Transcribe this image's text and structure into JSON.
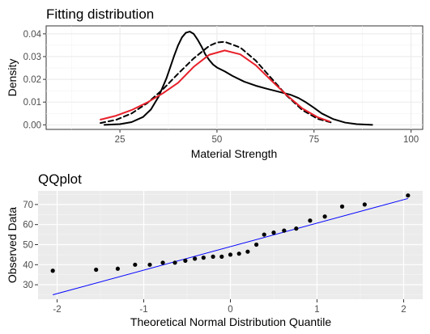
{
  "chart_data": [
    {
      "type": "line",
      "title": "Fitting distribution",
      "xlabel": "Material Strength",
      "ylabel": "Density",
      "xlim": [
        6,
        103
      ],
      "ylim": [
        -0.002,
        0.0435
      ],
      "x_ticks": [
        25,
        50,
        75,
        100
      ],
      "y_ticks": [
        0.0,
        0.01,
        0.02,
        0.03,
        0.04
      ],
      "y_tick_labels": [
        "0.00",
        "0.01",
        "0.02",
        "0.03",
        "0.04"
      ],
      "grid": true,
      "panel_background": "#ffffff",
      "series": [
        {
          "style": "solid",
          "color": "#000000",
          "x": [
            21,
            25,
            28,
            31,
            33,
            35,
            37,
            38,
            39,
            40,
            41,
            42,
            43,
            44,
            45,
            46,
            47,
            48,
            49,
            50,
            52,
            54,
            57,
            60,
            63,
            66,
            69,
            71,
            73,
            75,
            77,
            80,
            83,
            86,
            90
          ],
          "y": [
            0.0,
            0.0003,
            0.0012,
            0.0035,
            0.0068,
            0.0125,
            0.0205,
            0.0255,
            0.0305,
            0.035,
            0.0385,
            0.0405,
            0.041,
            0.04,
            0.0375,
            0.0345,
            0.031,
            0.0285,
            0.0265,
            0.0252,
            0.0235,
            0.0215,
            0.019,
            0.0172,
            0.0158,
            0.0145,
            0.0132,
            0.0118,
            0.0098,
            0.0075,
            0.005,
            0.0025,
            0.001,
            0.0003,
            0.0
          ]
        },
        {
          "style": "dashed",
          "color": "#000000",
          "x": [
            20,
            24,
            28,
            32,
            36,
            40,
            44,
            48,
            50,
            52,
            56,
            60,
            64,
            68,
            72,
            76,
            80
          ],
          "y": [
            0.0008,
            0.0022,
            0.005,
            0.0095,
            0.0155,
            0.0225,
            0.0292,
            0.0347,
            0.0362,
            0.0365,
            0.034,
            0.0282,
            0.0205,
            0.0128,
            0.0065,
            0.0026,
            0.0008
          ]
        },
        {
          "style": "solid",
          "color": "#e8202a",
          "x": [
            20,
            24,
            28,
            32,
            36,
            40,
            44,
            48,
            52,
            56,
            60,
            64,
            68,
            72,
            76,
            79
          ],
          "y": [
            0.0023,
            0.004,
            0.0065,
            0.0098,
            0.0138,
            0.0185,
            0.0255,
            0.0308,
            0.0327,
            0.031,
            0.0262,
            0.0195,
            0.013,
            0.0072,
            0.0033,
            0.0015
          ]
        }
      ]
    },
    {
      "type": "scatter",
      "title": "QQplot",
      "xlabel": "Theoretical Normal Distribution Quantile",
      "ylabel": "Observed Data",
      "xlim": [
        -2.22,
        2.22
      ],
      "ylim": [
        22.8,
        76.8
      ],
      "x_ticks": [
        -2,
        -1,
        0,
        1,
        2
      ],
      "y_ticks": [
        30,
        40,
        50,
        60,
        70
      ],
      "grid": true,
      "panel_background": "#ebebeb",
      "points": {
        "x": [
          -2.05,
          -1.55,
          -1.3,
          -1.1,
          -0.93,
          -0.78,
          -0.64,
          -0.52,
          -0.41,
          -0.31,
          -0.2,
          -0.1,
          0.0,
          0.1,
          0.2,
          0.3,
          0.39,
          0.5,
          0.62,
          0.76,
          0.92,
          1.09,
          1.29,
          1.55,
          2.05
        ],
        "y": [
          37,
          37.5,
          38,
          40,
          40,
          41,
          41,
          42,
          43,
          43.5,
          44,
          44,
          45,
          45.5,
          46.5,
          50,
          55,
          56,
          57,
          58,
          62,
          64,
          69,
          70,
          74.5
        ]
      },
      "reference_line": {
        "x": [
          -2.05,
          2.05
        ],
        "y": [
          25,
          73
        ],
        "color": "#0000ff"
      }
    }
  ]
}
